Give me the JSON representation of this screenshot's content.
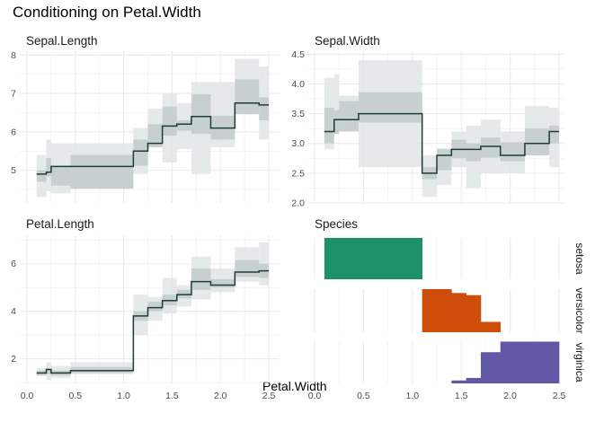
{
  "title": "Conditioning on Petal.Width",
  "xlabel": "Petal.Width",
  "x_ticks": [
    "0.0",
    "0.5",
    "1.0",
    "1.5",
    "2.0",
    "2.5"
  ],
  "colors": {
    "line": "#1f3b36",
    "band_outer": "#e1e5e5",
    "band_inner": "#c3cbca",
    "grid": "#ebebeb",
    "setosa": "#1e9068",
    "versicolor": "#cf4d0a",
    "virginica": "#6159a6"
  },
  "chart_data": [
    {
      "type": "line",
      "title": "Sepal.Length",
      "x_breaks": [
        0.1,
        0.2,
        0.25,
        0.45,
        1.1,
        1.25,
        1.4,
        1.55,
        1.7,
        1.9,
        2.15,
        2.4,
        2.5
      ],
      "y": [
        4.9,
        4.95,
        5.1,
        5.1,
        5.5,
        5.7,
        6.15,
        6.2,
        6.4,
        6.1,
        6.75,
        6.7
      ],
      "inner_band": [
        [
          4.7,
          5.0
        ],
        [
          4.84,
          5.32
        ],
        [
          4.6,
          5.08
        ],
        [
          4.52,
          5.4
        ],
        [
          5.12,
          5.8
        ],
        [
          5.6,
          6.2
        ],
        [
          5.9,
          6.66
        ],
        [
          6.03,
          6.3
        ],
        [
          5.95,
          6.98
        ],
        [
          5.8,
          6.42
        ],
        [
          6.46,
          7.37
        ],
        [
          6.3,
          6.9
        ]
      ],
      "outer_band": [
        [
          4.3,
          5.4
        ],
        [
          4.45,
          5.8
        ],
        [
          4.4,
          5.7
        ],
        [
          4.52,
          5.7
        ],
        [
          4.9,
          6.1
        ],
        [
          5.6,
          6.6
        ],
        [
          5.2,
          7.0
        ],
        [
          5.55,
          6.75
        ],
        [
          4.9,
          7.3
        ],
        [
          5.6,
          7.3
        ],
        [
          6.46,
          7.9
        ],
        [
          5.8,
          7.7
        ]
      ],
      "y_ticks": [
        "5",
        "6",
        "7",
        "8"
      ],
      "ylim": [
        4.15,
        8.1
      ]
    },
    {
      "type": "line",
      "title": "Sepal.Width",
      "x_breaks": [
        0.1,
        0.2,
        0.25,
        0.45,
        1.1,
        1.25,
        1.4,
        1.55,
        1.7,
        1.9,
        2.15,
        2.4,
        2.5
      ],
      "y": [
        3.2,
        3.4,
        3.4,
        3.5,
        2.5,
        2.8,
        2.9,
        2.9,
        2.95,
        2.8,
        3.0,
        3.2
      ],
      "inner_band": [
        [
          3.0,
          3.6
        ],
        [
          3.16,
          3.56
        ],
        [
          3.2,
          3.71
        ],
        [
          3.35,
          3.86
        ],
        [
          2.4,
          2.6
        ],
        [
          2.55,
          2.9
        ],
        [
          2.75,
          3.06
        ],
        [
          2.7,
          3.0
        ],
        [
          2.76,
          3.1
        ],
        [
          2.7,
          3.02
        ],
        [
          2.8,
          3.25
        ],
        [
          3.0,
          3.3
        ]
      ],
      "outer_band": [
        [
          2.9,
          4.1
        ],
        [
          3.16,
          4.16
        ],
        [
          3.2,
          3.8
        ],
        [
          2.6,
          4.4
        ],
        [
          2.1,
          2.8
        ],
        [
          2.3,
          2.92
        ],
        [
          2.6,
          3.2
        ],
        [
          2.25,
          3.3
        ],
        [
          2.5,
          3.4
        ],
        [
          2.5,
          3.2
        ],
        [
          2.8,
          3.63
        ],
        [
          2.6,
          3.6
        ]
      ],
      "y_ticks": [
        "2.0",
        "2.5",
        "3.0",
        "3.5",
        "4.0",
        "4.5"
      ],
      "ylim": [
        2.0,
        4.55
      ]
    },
    {
      "type": "line",
      "title": "Petal.Length",
      "x_breaks": [
        0.1,
        0.2,
        0.25,
        0.45,
        1.1,
        1.25,
        1.4,
        1.55,
        1.7,
        1.9,
        2.15,
        2.4,
        2.5
      ],
      "y": [
        1.4,
        1.55,
        1.4,
        1.5,
        3.8,
        4.15,
        4.45,
        4.7,
        5.25,
        5.1,
        5.65,
        5.7
      ],
      "inner_band": [
        [
          1.3,
          1.5
        ],
        [
          1.35,
          1.6
        ],
        [
          1.3,
          1.5
        ],
        [
          1.4,
          1.65
        ],
        [
          3.6,
          4.0
        ],
        [
          4.0,
          4.4
        ],
        [
          4.25,
          4.7
        ],
        [
          4.55,
          4.9
        ],
        [
          4.9,
          5.8
        ],
        [
          5.0,
          5.35
        ],
        [
          5.45,
          6.15
        ],
        [
          5.4,
          6.0
        ]
      ],
      "outer_band": [
        [
          1.28,
          1.6
        ],
        [
          1.1,
          1.85
        ],
        [
          1.2,
          1.7
        ],
        [
          1.35,
          1.85
        ],
        [
          3.0,
          4.7
        ],
        [
          3.6,
          4.6
        ],
        [
          3.9,
          5.4
        ],
        [
          4.2,
          5.1
        ],
        [
          4.5,
          6.3
        ],
        [
          4.8,
          5.8
        ],
        [
          5.25,
          6.7
        ],
        [
          5.1,
          6.9
        ]
      ],
      "y_ticks": [
        "2",
        "4",
        "6"
      ],
      "ylim": [
        1.0,
        7.2
      ]
    },
    {
      "type": "area",
      "title": "Species",
      "x_breaks": [
        0.1,
        1.1,
        1.4,
        1.55,
        1.7,
        1.9,
        2.5
      ],
      "series": [
        {
          "name": "setosa",
          "values": [
            1.0,
            0,
            0,
            0,
            0,
            0
          ]
        },
        {
          "name": "versicolor",
          "values": [
            0,
            1.0,
            0.91,
            0.86,
            0.24,
            0
          ]
        },
        {
          "name": "virginica",
          "values": [
            0,
            0,
            0.07,
            0.13,
            0.74,
            0.99
          ]
        }
      ],
      "ylim": [
        0,
        1
      ]
    }
  ]
}
